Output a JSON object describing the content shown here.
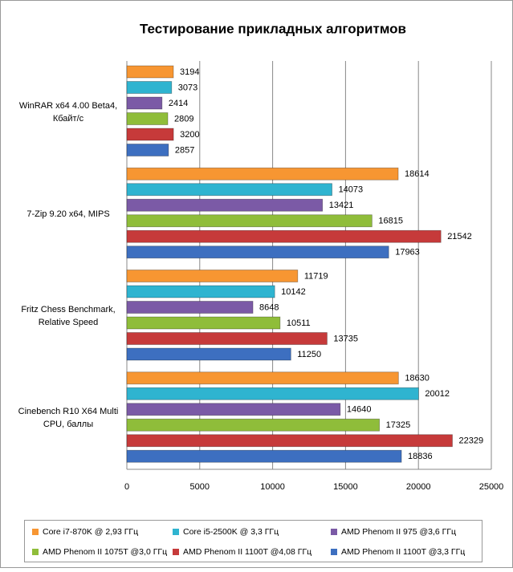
{
  "chart_data": {
    "type": "hbar",
    "title": "Тестирование прикладных алгоритмов",
    "categories": [
      "WinRAR x64 4.00 Beta4, Кбайт/с",
      "7-Zip 9.20 x64, MIPS",
      "Fritz Chess Benchmark, Relative Speed",
      "Cinebench R10 X64 Multi CPU, баллы"
    ],
    "series": [
      {
        "name": "Core i7-870K @ 2,93 ГГц",
        "color": "#f79632",
        "values": [
          3194,
          18614,
          11719,
          18630
        ]
      },
      {
        "name": "Core i5-2500K @ 3,3 ГГц",
        "color": "#2fb4d0",
        "values": [
          3073,
          14073,
          10142,
          20012
        ]
      },
      {
        "name": "AMD Phenom II 975 @3,6 ГГц",
        "color": "#7b5aa6",
        "values": [
          2414,
          13421,
          8648,
          14640
        ]
      },
      {
        "name": "AMD Phenom II 1075T @3,0 ГГц",
        "color": "#8fbd3a",
        "values": [
          2809,
          16815,
          10511,
          17325
        ]
      },
      {
        "name": "AMD Phenom II 1100T @4,08 ГГц",
        "color": "#c63a3a",
        "values": [
          3200,
          21542,
          13735,
          22329
        ]
      },
      {
        "name": "AMD Phenom II 1100T @3,3 ГГц",
        "color": "#3d6fc0",
        "values": [
          2857,
          17963,
          11250,
          18836
        ]
      }
    ],
    "xlim": [
      0,
      25000
    ],
    "xticks": [
      0,
      5000,
      10000,
      15000,
      20000,
      25000
    ],
    "grid": true
  }
}
